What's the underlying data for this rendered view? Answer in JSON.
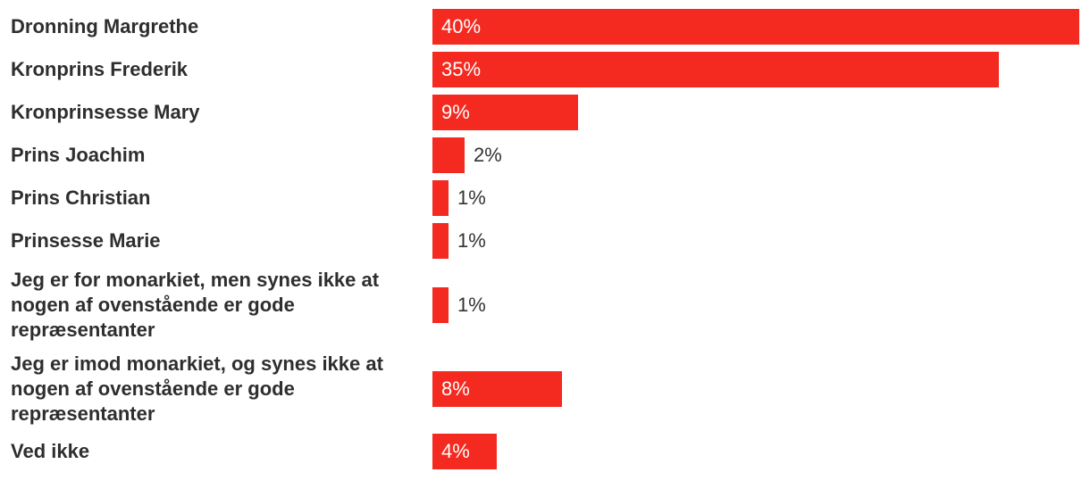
{
  "chart_data": {
    "type": "bar",
    "orientation": "horizontal",
    "categories": [
      "Dronning Margrethe",
      "Kronprins Frederik",
      "Kronprinsesse Mary",
      "Prins Joachim",
      "Prins Christian",
      "Prinsesse Marie",
      "Jeg er for monarkiet, men synes ikke at nogen af ovenstående er gode repræsentanter",
      "Jeg er imod monarkiet, og synes ikke at nogen af ovenstående er gode repræsentanter",
      "Ved ikke"
    ],
    "values": [
      40,
      35,
      9,
      2,
      1,
      1,
      1,
      8,
      4
    ],
    "value_labels": [
      "40%",
      "35%",
      "9%",
      "2%",
      "1%",
      "1%",
      "1%",
      "8%",
      "4%"
    ],
    "bar_color": "#f42a20",
    "xlim": [
      0,
      40
    ]
  }
}
